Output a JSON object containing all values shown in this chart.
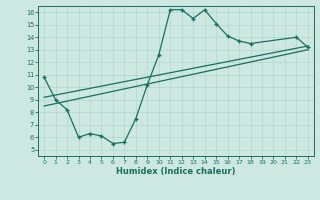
{
  "xlabel": "Humidex (Indice chaleur)",
  "bg_color": "#cce8e0",
  "line_color": "#1a6e60",
  "grid_color": "#b0d8ce",
  "xlim": [
    -0.5,
    23.5
  ],
  "ylim": [
    4.5,
    16.5
  ],
  "xticks": [
    0,
    1,
    2,
    3,
    4,
    5,
    6,
    7,
    8,
    9,
    10,
    11,
    12,
    13,
    14,
    15,
    16,
    17,
    18,
    19,
    20,
    21,
    22,
    23
  ],
  "yticks": [
    5,
    6,
    7,
    8,
    9,
    10,
    11,
    12,
    13,
    14,
    15,
    16
  ],
  "line1_x": [
    0,
    1,
    2,
    3,
    4,
    5,
    6,
    7,
    8,
    9,
    10,
    11,
    12,
    13,
    14,
    15,
    16,
    17,
    18,
    22,
    23
  ],
  "line1_y": [
    10.8,
    9.0,
    8.2,
    6.0,
    6.3,
    6.1,
    5.5,
    5.6,
    7.5,
    10.2,
    12.6,
    16.2,
    16.2,
    15.5,
    16.2,
    15.1,
    14.1,
    13.7,
    13.5,
    14.0,
    13.2
  ],
  "line2_x": [
    0,
    23
  ],
  "line2_y": [
    9.2,
    13.3
  ],
  "line3_x": [
    0,
    23
  ],
  "line3_y": [
    8.5,
    13.0
  ]
}
